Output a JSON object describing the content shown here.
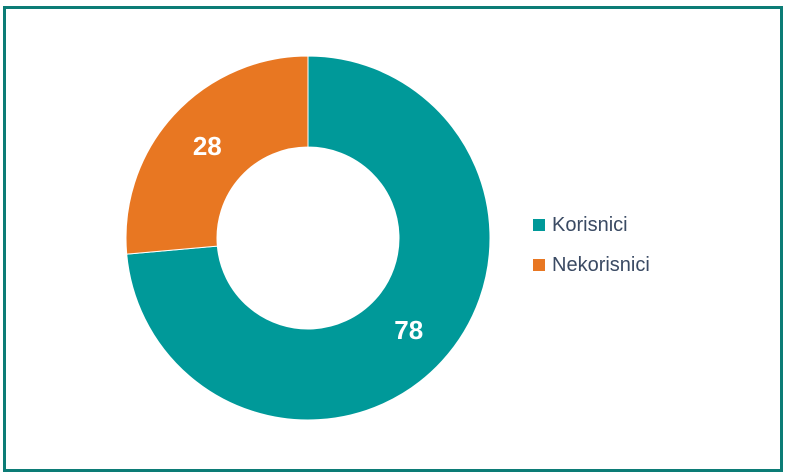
{
  "chart_data": {
    "type": "pie",
    "title": "",
    "categories": [
      "Korisnici",
      "Nekorisnici"
    ],
    "values": [
      78,
      28
    ],
    "colors": [
      "#009999",
      "#e87722"
    ],
    "hole": 0.5,
    "start_angle_deg": 0,
    "direction": "clockwise",
    "legend_position": "right",
    "data_labels": [
      "78",
      "28"
    ]
  }
}
